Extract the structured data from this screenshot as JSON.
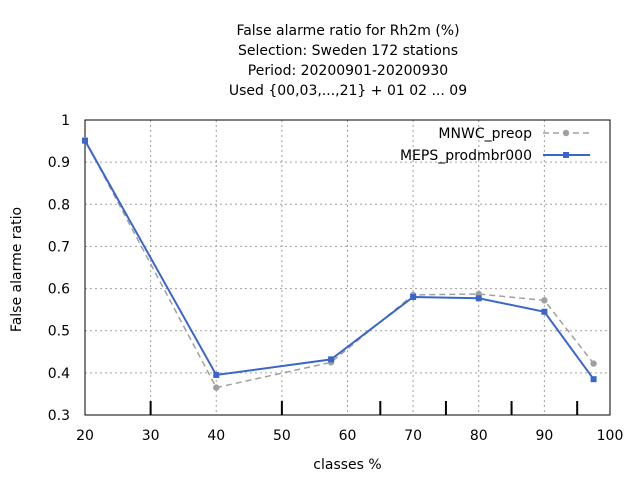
{
  "chart_data": {
    "type": "line",
    "title_lines": [
      "False alarme ratio  for Rh2m (%)",
      "Selection: Sweden    172 stations",
      "Period: 20200901-20200930",
      "Used {00,03,...,21} + 01 02 ... 09"
    ],
    "xlabel": "classes %",
    "ylabel": "False alarme ratio",
    "xlim": [
      20,
      100
    ],
    "ylim": [
      0.3,
      1.0
    ],
    "x_ticks": [
      20,
      30,
      40,
      50,
      60,
      70,
      80,
      90,
      100
    ],
    "x_tick_labels": [
      "20",
      "30",
      "40",
      "50",
      "60",
      "70",
      "80",
      "90",
      "100"
    ],
    "y_ticks": [
      0.3,
      0.4,
      0.5,
      0.6,
      0.7,
      0.8,
      0.9,
      1.0
    ],
    "y_tick_labels": [
      "0.3",
      "0.4",
      "0.5",
      "0.6",
      "0.7",
      "0.8",
      "0.9",
      "1"
    ],
    "x_minor_marks": [
      30,
      50,
      65,
      75,
      85,
      95
    ],
    "grid": true,
    "legend_position": "top-right",
    "series": [
      {
        "name": "MNWC_preop",
        "color": "#a0a0a0",
        "dashed": true,
        "x": [
          20,
          40,
          57.5,
          70,
          80,
          90,
          97.5
        ],
        "y": [
          0.952,
          0.365,
          0.425,
          0.585,
          0.587,
          0.572,
          0.422
        ]
      },
      {
        "name": "MEPS_prodmbr000",
        "color": "#3a66cc",
        "dashed": false,
        "x": [
          20,
          40,
          57.5,
          70,
          80,
          90,
          97.5
        ],
        "y": [
          0.951,
          0.395,
          0.432,
          0.58,
          0.577,
          0.545,
          0.385
        ]
      }
    ]
  }
}
